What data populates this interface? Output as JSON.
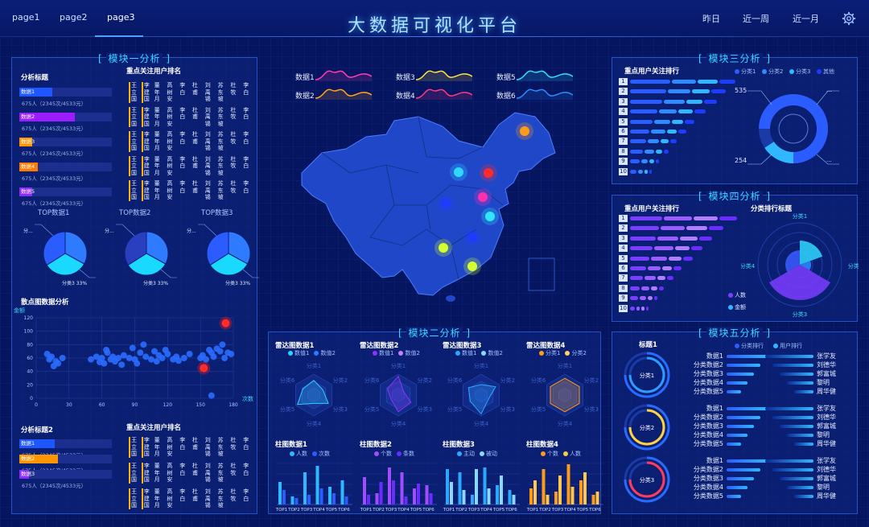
{
  "header": {
    "title": "大数据可视化平台",
    "tabs": [
      "page1",
      "page2",
      "page3"
    ],
    "active_tab": "page3",
    "ranges": [
      "昨日",
      "近一周",
      "近一月"
    ]
  },
  "m1": {
    "title": "模块一分析",
    "sub1": "分析标题",
    "sub2": "重点关注用户排名",
    "bars": [
      {
        "label": "数据1",
        "pct": 0.36,
        "color": "#1e57ff",
        "note": "675人（2345次/4533元）"
      },
      {
        "label": "数据2",
        "pct": 0.6,
        "color": "#9b1dff",
        "note": "675人（2345次/4533元）"
      },
      {
        "label": "数据3",
        "pct": 0.14,
        "color": "#ff9500",
        "note": "675人（2345次/4533元）"
      },
      {
        "label": "数据4",
        "pct": 0.2,
        "color": "#ff7a00",
        "note": "675人（2345次/4533元）"
      },
      {
        "label": "数据5",
        "pct": 0.14,
        "color": "#8c2bff",
        "note": "675人（2345次/4533元）"
      }
    ],
    "names": [
      "王立国",
      "李建国",
      "董年月",
      "高树安",
      "李白",
      "杜甫",
      "刘禹锡",
      "苏东坡",
      "杜牧",
      "李白"
    ],
    "tops": [
      "TOP数据1",
      "TOP数据2",
      "TOP数据3"
    ],
    "pie_label": "分类3 33%",
    "pie_small": "分..."
  },
  "scatter": {
    "title": "散点图数据分析",
    "ylabel": "金额",
    "xlabel": "次数",
    "yticks": [
      "0",
      "20",
      "40",
      "60",
      "80",
      "100",
      "120"
    ],
    "xticks": [
      "0",
      "30",
      "60",
      "90",
      "120",
      "150",
      "180"
    ]
  },
  "m1b": {
    "sub1": "分析标题2",
    "sub2": "重点关注用户排名",
    "bars": [
      {
        "label": "数据1",
        "pct": 0.38,
        "color": "#1e57ff",
        "note": "675人（2345次/4533元）"
      },
      {
        "label": "数据2",
        "pct": 0.42,
        "color": "#ff9500",
        "note": "675人（2345次/4533元）"
      },
      {
        "label": "数据3",
        "pct": 0.1,
        "color": "#8c2bff",
        "note": "675人（2345次/4533元）"
      }
    ]
  },
  "map": {
    "legend": [
      "数据1",
      "数据2",
      "数据3",
      "数据4",
      "数据5",
      "数据6"
    ]
  },
  "m2": {
    "title": "模块二分析",
    "radars": [
      {
        "title": "雷达图数据1",
        "s": [
          "数值1",
          "数值2"
        ],
        "c": [
          "#2fd0ff",
          "#2a7bff"
        ]
      },
      {
        "title": "雷达图数据2",
        "s": [
          "数值1",
          "数值2"
        ],
        "c": [
          "#8e33ff",
          "#c280ff"
        ]
      },
      {
        "title": "雷达图数据3",
        "s": [
          "数值1",
          "数值2"
        ],
        "c": [
          "#2aa9ff",
          "#8ad8ff"
        ]
      },
      {
        "title": "雷达图数据4",
        "s": [
          "分类1",
          "分类2"
        ],
        "c": [
          "#ff9a1a",
          "#ffd166"
        ]
      }
    ],
    "radar_axes": [
      "分类1",
      "分类2",
      "分类3",
      "分类4",
      "分类5",
      "分类6"
    ],
    "bars": [
      {
        "title": "柱图数据1",
        "s": [
          "人数",
          "次数"
        ],
        "c": [
          "#2fb8ff",
          "#2a5cff"
        ]
      },
      {
        "title": "柱图数据2",
        "s": [
          "个数",
          "条数"
        ],
        "c": [
          "#a14dff",
          "#6b2cff"
        ]
      },
      {
        "title": "柱图数据3",
        "s": [
          "主动",
          "被动"
        ],
        "c": [
          "#2aa9ff",
          "#8ad8ff"
        ]
      },
      {
        "title": "柱图数据4",
        "s": [
          "个数",
          "人数"
        ],
        "c": [
          "#ff9a1a",
          "#ffc64d"
        ]
      }
    ],
    "xcats": [
      "TOP1",
      "TOP2",
      "TOP3",
      "TOP4",
      "TOP5",
      "TOP6"
    ]
  },
  "m3": {
    "title": "模块三分析",
    "sub": "重点用户关注排行",
    "legend": [
      "分类1",
      "分类2",
      "分类3",
      "其他"
    ],
    "ranks": [
      "1",
      "2",
      "3",
      "4",
      "5",
      "6",
      "7",
      "8",
      "9",
      "10"
    ],
    "v1": "535",
    "v2": "254",
    "e": "..."
  },
  "m4": {
    "title": "模块四分析",
    "sub1": "重点用户关注排行",
    "sub2": "分类排行标题",
    "rose": [
      "分类1",
      "分类2",
      "分类3",
      "分类4"
    ],
    "legend": [
      "人数",
      "金额"
    ]
  },
  "m5": {
    "title": "模块五分析",
    "sub": "标题1",
    "legend": [
      "分类排行",
      "用户排行"
    ],
    "groups": [
      {
        "label": "分类1",
        "color": "#2f9bff"
      },
      {
        "label": "分类2",
        "color": "#ffd23f"
      },
      {
        "label": "分类3",
        "color": "#ff3b5c"
      }
    ],
    "left": [
      "数据1",
      "分类数据2",
      "分类数据3",
      "分类数据4",
      "分类数据5"
    ],
    "right": [
      "张学友",
      "刘德华",
      "郭富城",
      "黎明",
      "周华健"
    ]
  }
}
